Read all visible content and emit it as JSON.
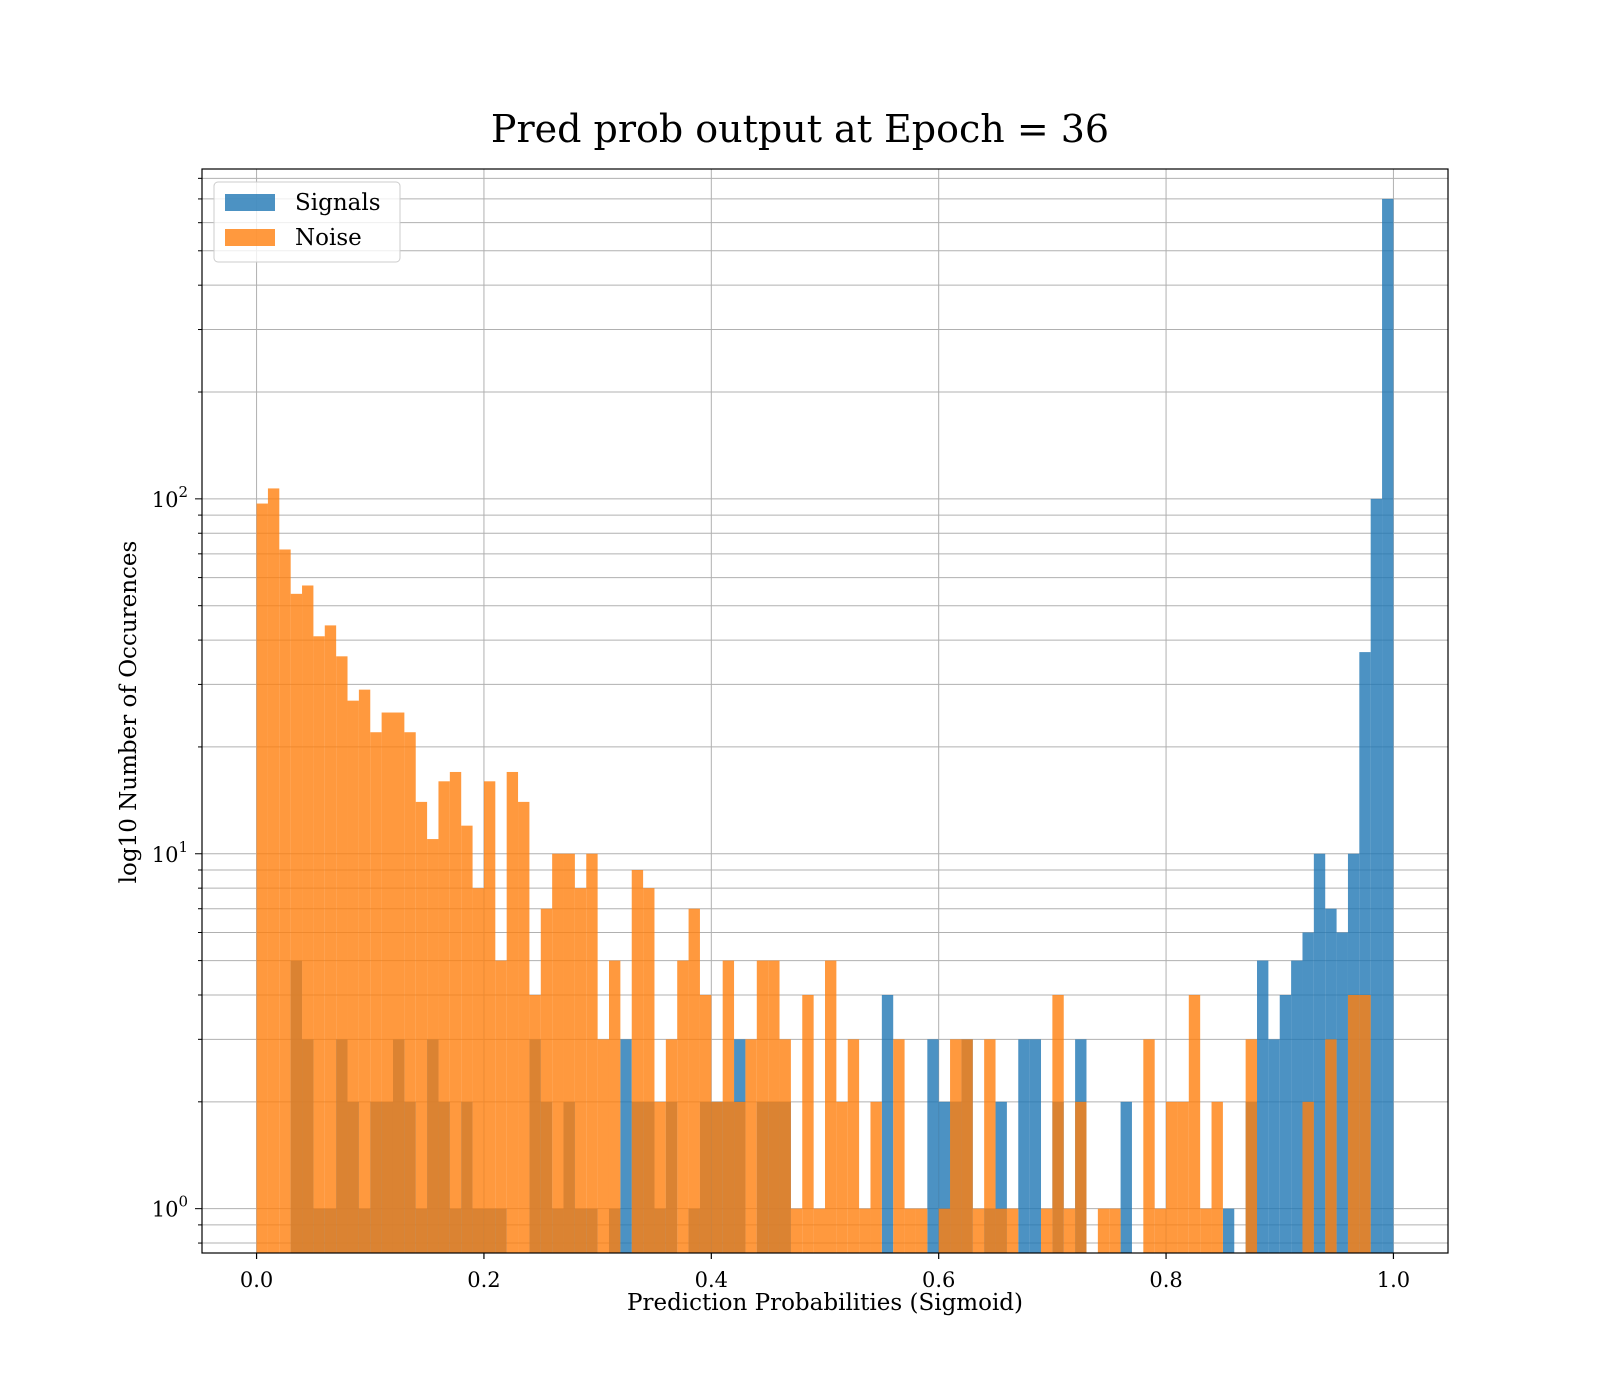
{
  "chart_data": {
    "type": "bar",
    "title": "Pred prob output at Epoch = 36",
    "xlabel": "Prediction Probabilities (Sigmoid)",
    "ylabel": "log10 Number of Occurences",
    "xlim": [
      -0.048,
      1.048
    ],
    "ylim": [
      0.75,
      850
    ],
    "yscale": "log",
    "grid": "major-and-minor",
    "legend_position": "top-left",
    "x_ticks": [
      {
        "value": 0.0,
        "label": "0.0"
      },
      {
        "value": 0.2,
        "label": "0.2"
      },
      {
        "value": 0.4,
        "label": "0.4"
      },
      {
        "value": 0.6,
        "label": "0.6"
      },
      {
        "value": 0.8,
        "label": "0.8"
      },
      {
        "value": 1.0,
        "label": "1.0"
      }
    ],
    "y_ticks": [
      {
        "value": 1,
        "base": "10",
        "exponent": "0"
      },
      {
        "value": 10,
        "base": "10",
        "exponent": "1"
      },
      {
        "value": 100,
        "base": "10",
        "exponent": "2"
      }
    ],
    "bin_width": 0.01,
    "series": [
      {
        "name": "Signals",
        "color": "#1f77b4",
        "opacity": 0.8,
        "bins": [
          [
            0.03,
            5
          ],
          [
            0.04,
            3
          ],
          [
            0.05,
            1
          ],
          [
            0.06,
            1
          ],
          [
            0.07,
            3
          ],
          [
            0.08,
            2
          ],
          [
            0.09,
            1
          ],
          [
            0.1,
            2
          ],
          [
            0.11,
            2
          ],
          [
            0.12,
            3
          ],
          [
            0.13,
            2
          ],
          [
            0.14,
            1
          ],
          [
            0.15,
            3
          ],
          [
            0.16,
            2
          ],
          [
            0.17,
            1
          ],
          [
            0.18,
            2
          ],
          [
            0.19,
            1
          ],
          [
            0.2,
            1
          ],
          [
            0.21,
            1
          ],
          [
            0.24,
            3
          ],
          [
            0.25,
            2
          ],
          [
            0.26,
            1
          ],
          [
            0.27,
            2
          ],
          [
            0.28,
            1
          ],
          [
            0.29,
            1
          ],
          [
            0.31,
            1
          ],
          [
            0.32,
            3
          ],
          [
            0.33,
            2
          ],
          [
            0.34,
            2
          ],
          [
            0.35,
            1
          ],
          [
            0.36,
            2
          ],
          [
            0.38,
            1
          ],
          [
            0.39,
            2
          ],
          [
            0.4,
            2
          ],
          [
            0.41,
            2
          ],
          [
            0.42,
            3
          ],
          [
            0.44,
            2
          ],
          [
            0.45,
            2
          ],
          [
            0.46,
            2
          ],
          [
            0.55,
            4
          ],
          [
            0.59,
            3
          ],
          [
            0.6,
            2
          ],
          [
            0.61,
            2
          ],
          [
            0.62,
            3
          ],
          [
            0.64,
            1
          ],
          [
            0.65,
            2
          ],
          [
            0.67,
            3
          ],
          [
            0.68,
            3
          ],
          [
            0.7,
            2
          ],
          [
            0.72,
            3
          ],
          [
            0.76,
            2
          ],
          [
            0.85,
            1
          ],
          [
            0.87,
            2
          ],
          [
            0.88,
            5
          ],
          [
            0.89,
            3
          ],
          [
            0.9,
            4
          ],
          [
            0.91,
            5
          ],
          [
            0.92,
            6
          ],
          [
            0.93,
            10
          ],
          [
            0.94,
            7
          ],
          [
            0.95,
            6
          ],
          [
            0.96,
            10
          ],
          [
            0.97,
            37
          ],
          [
            0.98,
            100
          ],
          [
            0.99,
            700
          ]
        ]
      },
      {
        "name": "Noise",
        "color": "#ff7f0e",
        "opacity": 0.8,
        "bins": [
          [
            0.0,
            97
          ],
          [
            0.01,
            107
          ],
          [
            0.02,
            72
          ],
          [
            0.03,
            54
          ],
          [
            0.04,
            57
          ],
          [
            0.05,
            41
          ],
          [
            0.06,
            44
          ],
          [
            0.07,
            36
          ],
          [
            0.08,
            27
          ],
          [
            0.09,
            29
          ],
          [
            0.1,
            22
          ],
          [
            0.11,
            25
          ],
          [
            0.12,
            25
          ],
          [
            0.13,
            22
          ],
          [
            0.14,
            14
          ],
          [
            0.15,
            11
          ],
          [
            0.16,
            16
          ],
          [
            0.17,
            17
          ],
          [
            0.18,
            12
          ],
          [
            0.19,
            8
          ],
          [
            0.2,
            16
          ],
          [
            0.21,
            5
          ],
          [
            0.22,
            17
          ],
          [
            0.23,
            14
          ],
          [
            0.24,
            4
          ],
          [
            0.25,
            7
          ],
          [
            0.26,
            10
          ],
          [
            0.27,
            10
          ],
          [
            0.28,
            8
          ],
          [
            0.29,
            10
          ],
          [
            0.3,
            3
          ],
          [
            0.31,
            5
          ],
          [
            0.33,
            9
          ],
          [
            0.34,
            8
          ],
          [
            0.35,
            2
          ],
          [
            0.36,
            3
          ],
          [
            0.37,
            5
          ],
          [
            0.38,
            7
          ],
          [
            0.39,
            4
          ],
          [
            0.4,
            2
          ],
          [
            0.41,
            5
          ],
          [
            0.42,
            2
          ],
          [
            0.43,
            3
          ],
          [
            0.44,
            5
          ],
          [
            0.45,
            5
          ],
          [
            0.46,
            3
          ],
          [
            0.47,
            1
          ],
          [
            0.48,
            4
          ],
          [
            0.49,
            1
          ],
          [
            0.5,
            5
          ],
          [
            0.51,
            2
          ],
          [
            0.52,
            3
          ],
          [
            0.53,
            1
          ],
          [
            0.54,
            2
          ],
          [
            0.56,
            3
          ],
          [
            0.57,
            1
          ],
          [
            0.58,
            1
          ],
          [
            0.6,
            1
          ],
          [
            0.61,
            3
          ],
          [
            0.62,
            3
          ],
          [
            0.63,
            1
          ],
          [
            0.64,
            3
          ],
          [
            0.65,
            1
          ],
          [
            0.66,
            1
          ],
          [
            0.69,
            1
          ],
          [
            0.7,
            4
          ],
          [
            0.71,
            1
          ],
          [
            0.72,
            2
          ],
          [
            0.74,
            1
          ],
          [
            0.75,
            1
          ],
          [
            0.78,
            3
          ],
          [
            0.79,
            1
          ],
          [
            0.8,
            2
          ],
          [
            0.81,
            2
          ],
          [
            0.82,
            4
          ],
          [
            0.83,
            1
          ],
          [
            0.84,
            2
          ],
          [
            0.87,
            3
          ],
          [
            0.92,
            2
          ],
          [
            0.94,
            3
          ],
          [
            0.96,
            4
          ],
          [
            0.97,
            4
          ]
        ]
      }
    ]
  }
}
